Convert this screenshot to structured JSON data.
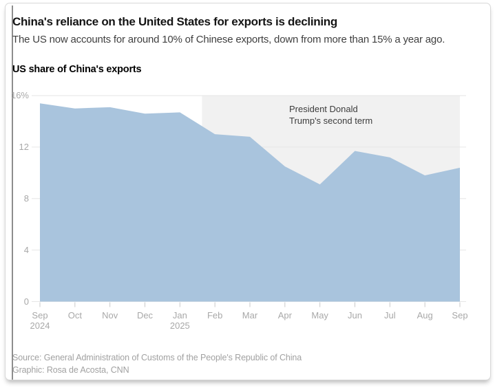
{
  "header": {
    "title": "China's reliance on the United States for exports is declining",
    "subtitle": "The US now accounts for around 10% of Chinese exports, down from more than 15% a year ago."
  },
  "chart": {
    "label": "US share of China's exports",
    "annotation": {
      "line1": "President Donald",
      "line2": "Trump's second term"
    }
  },
  "chart_data": {
    "type": "area",
    "title": "US share of China's exports",
    "unit": "percent",
    "x": [
      "Sep 2024",
      "Oct",
      "Nov",
      "Dec",
      "Jan 2025",
      "Feb",
      "Mar",
      "Apr",
      "May",
      "Jun",
      "Jul",
      "Aug",
      "Sep"
    ],
    "x_tick_labels": [
      {
        "label": "Sep",
        "sub": "2024"
      },
      {
        "label": "Oct"
      },
      {
        "label": "Nov"
      },
      {
        "label": "Dec"
      },
      {
        "label": "Jan",
        "sub": "2025"
      },
      {
        "label": "Feb"
      },
      {
        "label": "Mar"
      },
      {
        "label": "Apr"
      },
      {
        "label": "May"
      },
      {
        "label": "Jun"
      },
      {
        "label": "Jul"
      },
      {
        "label": "Aug"
      },
      {
        "label": "Sep"
      }
    ],
    "values": [
      15.4,
      15.0,
      15.1,
      14.6,
      14.7,
      13.0,
      12.8,
      10.5,
      9.1,
      11.7,
      11.2,
      9.8,
      10.4
    ],
    "ylim": [
      0,
      16
    ],
    "y_ticks": [
      {
        "value": 16,
        "label": "16%"
      },
      {
        "value": 12,
        "label": "12"
      },
      {
        "value": 8,
        "label": "8"
      },
      {
        "value": 4,
        "label": "4"
      },
      {
        "value": 0,
        "label": "0"
      }
    ],
    "grid": "horizontal",
    "legend": "none",
    "shaded_region": {
      "label": "President Donald Trump's second term",
      "start_index": 4.63,
      "end_index": 12
    },
    "colors": {
      "area": "#a9c4dd",
      "band": "#f1f1f1",
      "grid": "#e6e6e6",
      "tick": "#c9c9c9",
      "axis_text": "#a8a8a8",
      "annotation_text": "#3c3c3c"
    }
  },
  "footer": {
    "source": "Source: General Administration of Customs of the People's Republic of China",
    "credit": "Graphic: Rosa de Acosta, CNN"
  }
}
